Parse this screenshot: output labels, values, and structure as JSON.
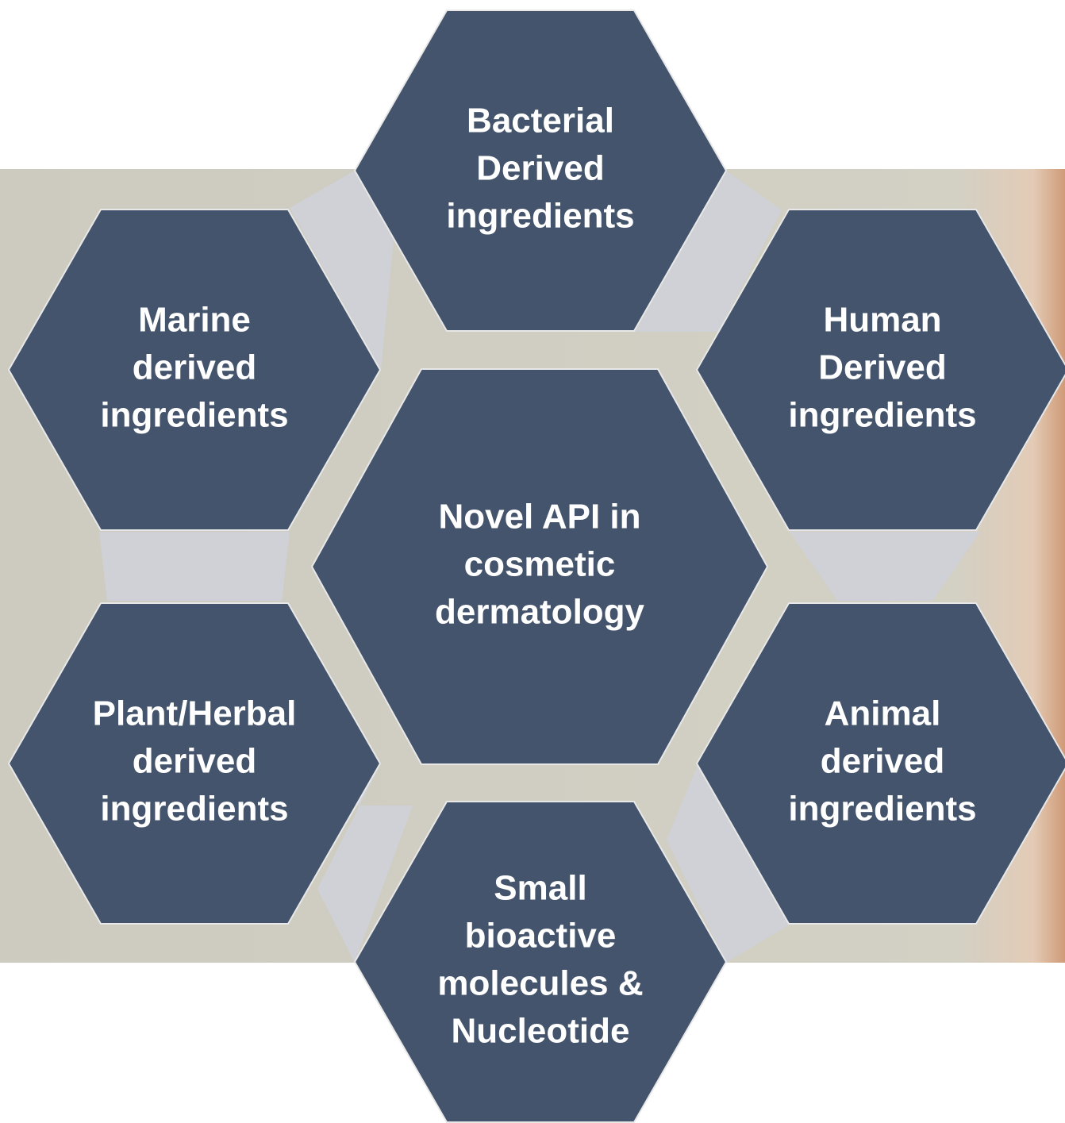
{
  "center": {
    "lines": [
      "Novel API in",
      "cosmetic",
      "dermatology"
    ]
  },
  "nodes": [
    {
      "lines": [
        "Bacterial",
        "Derived",
        "ingredients"
      ]
    },
    {
      "lines": [
        "Human",
        "Derived",
        "ingredients"
      ]
    },
    {
      "lines": [
        "Animal",
        "derived",
        "ingredients"
      ]
    },
    {
      "lines": [
        "Small",
        "bioactive",
        "molecules &",
        "Nucleotide"
      ]
    },
    {
      "lines": [
        "Plant/Herbal",
        "derived",
        "ingredients"
      ]
    },
    {
      "lines": [
        "Marine",
        "derived",
        "ingredients"
      ]
    }
  ]
}
